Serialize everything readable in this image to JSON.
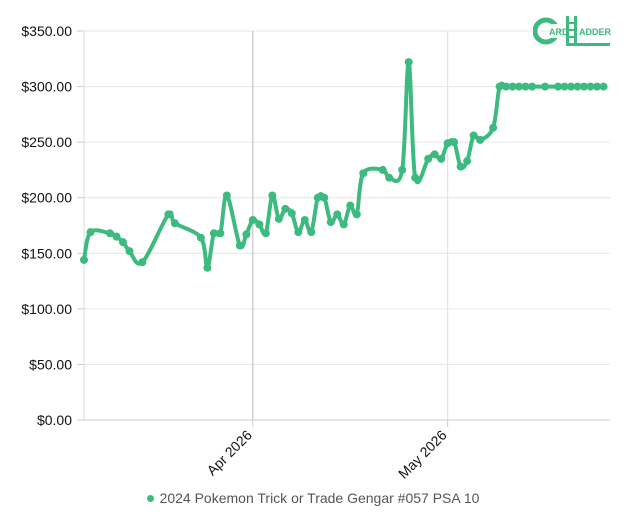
{
  "logo": {
    "text": "CARDLADDER",
    "color": "#3dba7f"
  },
  "legend": {
    "label": "2024 Pokemon Trick or Trade Gengar #057 PSA 10"
  },
  "chart_data": {
    "type": "line",
    "ylim": [
      0,
      350
    ],
    "y_ticks": [
      0,
      50,
      100,
      150,
      200,
      250,
      300,
      350
    ],
    "y_tick_labels": [
      "$0.00",
      "$50.00",
      "$100.00",
      "$150.00",
      "$200.00",
      "$250.00",
      "$300.00",
      "$350.00"
    ],
    "x_start": "2026-03-06",
    "x_end": "2026-05-26",
    "x_ticks": [
      "2026-04-01",
      "2026-05-01"
    ],
    "x_tick_labels": [
      "Apr 2026",
      "May 2026"
    ],
    "grid": true,
    "line_color": "#3dba7f",
    "series": [
      {
        "name": "2024 Pokemon Trick or Trade Gengar #057 PSA 10",
        "x": [
          "2026-03-06",
          "2026-03-07",
          "2026-03-10",
          "2026-03-11",
          "2026-03-12",
          "2026-03-13",
          "2026-03-15",
          "2026-03-19",
          "2026-03-20",
          "2026-03-24",
          "2026-03-25",
          "2026-03-26",
          "2026-03-27",
          "2026-03-28",
          "2026-03-30",
          "2026-03-31",
          "2026-04-01",
          "2026-04-02",
          "2026-04-03",
          "2026-04-04",
          "2026-04-05",
          "2026-04-06",
          "2026-04-07",
          "2026-04-08",
          "2026-04-09",
          "2026-04-10",
          "2026-04-11",
          "2026-04-12",
          "2026-04-13",
          "2026-04-14",
          "2026-04-15",
          "2026-04-16",
          "2026-04-17",
          "2026-04-18",
          "2026-04-21",
          "2026-04-22",
          "2026-04-24",
          "2026-04-25",
          "2026-04-26",
          "2026-04-28",
          "2026-04-29",
          "2026-04-30",
          "2026-05-01",
          "2026-05-02",
          "2026-05-03",
          "2026-05-04",
          "2026-05-05",
          "2026-05-06",
          "2026-05-08",
          "2026-05-09",
          "2026-05-10",
          "2026-05-11",
          "2026-05-12",
          "2026-05-13",
          "2026-05-14",
          "2026-05-16",
          "2026-05-18",
          "2026-05-19",
          "2026-05-20",
          "2026-05-21",
          "2026-05-22",
          "2026-05-23",
          "2026-05-24",
          "2026-05-25",
          "2026-05-26"
        ],
        "values": [
          144,
          169,
          168,
          165,
          160,
          152,
          142,
          185,
          177,
          164,
          137,
          168,
          168,
          202,
          157,
          167,
          180,
          176,
          168,
          202,
          181,
          190,
          186,
          169,
          180,
          169,
          200,
          200,
          178,
          185,
          176,
          193,
          185,
          222,
          225,
          218,
          225,
          322,
          218,
          235,
          239,
          235,
          249,
          250,
          228,
          233,
          256,
          252,
          263,
          300,
          300,
          300,
          300,
          300,
          300,
          300,
          300,
          300,
          300,
          300,
          300,
          300,
          300,
          300,
          300
        ]
      }
    ]
  }
}
